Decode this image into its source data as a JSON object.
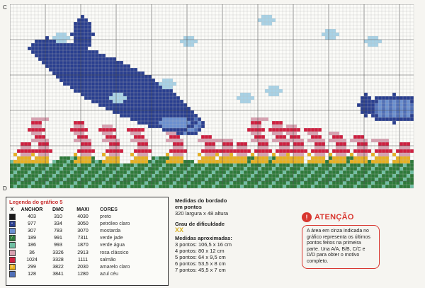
{
  "chart": {
    "corner_top": "C",
    "corner_bottom": "D"
  },
  "legend": {
    "title": "Legenda do gráfico 5",
    "headers": {
      "x": "X",
      "anchor": "ANCHOR",
      "dmc": "DMC",
      "maxi": "MAXI",
      "cores": "CORES"
    },
    "rows": [
      {
        "color": "#1a1a1a",
        "mark": "",
        "anchor": "403",
        "dmc": "310",
        "maxi": "4030",
        "cores": "preto"
      },
      {
        "color": "#2a3f8f",
        "mark": "•",
        "anchor": "977",
        "dmc": "334",
        "maxi": "3050",
        "cores": "petróleo claro"
      },
      {
        "color": "#6b8fd0",
        "mark": "",
        "anchor": "307",
        "dmc": "783",
        "maxi": "3070",
        "cores": "mostarda"
      },
      {
        "color": "#2e7a3a",
        "mark": "/",
        "anchor": "189",
        "dmc": "991",
        "maxi": "7311",
        "cores": "verde jade"
      },
      {
        "color": "#6fbfa2",
        "mark": "",
        "anchor": "186",
        "dmc": "993",
        "maxi": "1870",
        "cores": "verde água"
      },
      {
        "color": "#d8a0b0",
        "mark": "",
        "anchor": "36",
        "dmc": "3326",
        "maxi": "2913",
        "cores": "rosa clássico"
      },
      {
        "color": "#d02040",
        "mark": "",
        "anchor": "1024",
        "dmc": "3328",
        "maxi": "1111",
        "cores": "salmão"
      },
      {
        "color": "#e8b020",
        "mark": "o",
        "anchor": "299",
        "dmc": "3822",
        "maxi": "2030",
        "cores": "amarelo claro"
      },
      {
        "color": "#5070b8",
        "mark": "",
        "anchor": "128",
        "dmc": "3841",
        "maxi": "1280",
        "cores": "azul céu"
      }
    ]
  },
  "info": {
    "measures_title_1": "Medidas do bordado",
    "measures_title_2": "em pontos",
    "measures_value": "320 largura x 48 altura",
    "difficulty_title": "Grau de dificuldade",
    "difficulty_marks": "XX",
    "approx_title": "Medidas aproximadas:",
    "sizes": [
      "3 pontos: 106,5 x 16 cm",
      "4 pontos: 80 x 12 cm",
      "5 pontos: 64 x 9,5 cm",
      "6 pontos: 53,5 x 8 cm",
      "7 pontos: 45,5 x 7 cm"
    ]
  },
  "attention": {
    "icon": "!",
    "title": "ATENÇÃO",
    "text": "A área em cinza indicada no gráfico representa os últimos pontos feitos na primeira parte. Una A/A, B/B, C/C e D/D para obter o motivo completo."
  }
}
